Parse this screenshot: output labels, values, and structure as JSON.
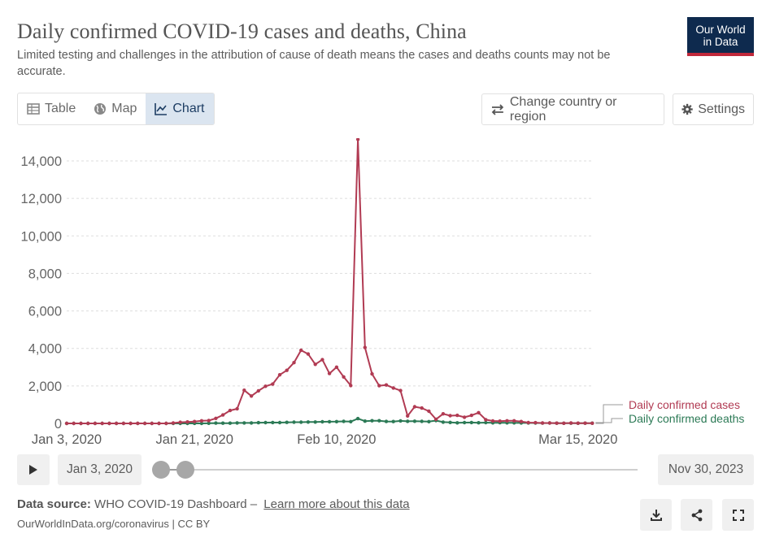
{
  "header": {
    "title": "Daily confirmed COVID-19 cases and deaths, China",
    "subtitle": "Limited testing and challenges in the attribution of cause of death means the cases and deaths counts may not be accurate.",
    "logo_line1": "Our World",
    "logo_line2": "in Data"
  },
  "tabs": [
    {
      "label": "Table",
      "icon": "table-icon"
    },
    {
      "label": "Map",
      "icon": "globe-icon"
    },
    {
      "label": "Chart",
      "icon": "line-chart-icon",
      "active": true
    }
  ],
  "controls": {
    "change_country": "Change country or region",
    "settings": "Settings"
  },
  "timeline": {
    "start_date": "Jan 3, 2020",
    "end_date": "Nov 30, 2023"
  },
  "footer": {
    "source_label": "Data source:",
    "source_text": "WHO COVID-19 Dashboard –",
    "learn_more": "Learn more about this data",
    "url": "OurWorldInData.org/coronavirus | CC BY"
  },
  "colors": {
    "cases": "#b13b53",
    "deaths": "#2c7a56",
    "grid": "#dddddd"
  },
  "chart_data": {
    "type": "line",
    "title": "Daily confirmed COVID-19 cases and deaths, China",
    "xlabel": "",
    "ylabel": "",
    "ylim": [
      0,
      15000
    ],
    "yticks": [
      0,
      2000,
      4000,
      6000,
      8000,
      10000,
      12000,
      14000
    ],
    "ytick_labels": [
      "0",
      "2,000",
      "4,000",
      "6,000",
      "8,000",
      "10,000",
      "12,000",
      "14,000"
    ],
    "xticks": [
      "2020-01-03",
      "2020-01-21",
      "2020-02-10",
      "2020-03-15"
    ],
    "xtick_labels": [
      "Jan 3, 2020",
      "Jan 21, 2020",
      "Feb 10, 2020",
      "Mar 15, 2020"
    ],
    "x_range": [
      "2020-01-03",
      "2020-03-18"
    ],
    "grid": true,
    "legend_position": "right",
    "series": [
      {
        "name": "Daily confirmed cases",
        "color": "#b13b53",
        "points": [
          [
            "2020-01-03",
            0
          ],
          [
            "2020-01-04",
            0
          ],
          [
            "2020-01-05",
            0
          ],
          [
            "2020-01-06",
            0
          ],
          [
            "2020-01-07",
            0
          ],
          [
            "2020-01-08",
            0
          ],
          [
            "2020-01-09",
            0
          ],
          [
            "2020-01-10",
            0
          ],
          [
            "2020-01-11",
            0
          ],
          [
            "2020-01-12",
            0
          ],
          [
            "2020-01-13",
            5
          ],
          [
            "2020-01-14",
            0
          ],
          [
            "2020-01-15",
            0
          ],
          [
            "2020-01-16",
            0
          ],
          [
            "2020-01-17",
            0
          ],
          [
            "2020-01-18",
            20
          ],
          [
            "2020-01-19",
            60
          ],
          [
            "2020-01-20",
            80
          ],
          [
            "2020-01-21",
            100
          ],
          [
            "2020-01-22",
            140
          ],
          [
            "2020-01-23",
            150
          ],
          [
            "2020-01-24",
            270
          ],
          [
            "2020-01-25",
            450
          ],
          [
            "2020-01-26",
            690
          ],
          [
            "2020-01-27",
            780
          ],
          [
            "2020-01-28",
            1770
          ],
          [
            "2020-01-29",
            1460
          ],
          [
            "2020-01-30",
            1740
          ],
          [
            "2020-01-31",
            1980
          ],
          [
            "2020-02-01",
            2100
          ],
          [
            "2020-02-02",
            2590
          ],
          [
            "2020-02-03",
            2830
          ],
          [
            "2020-02-04",
            3240
          ],
          [
            "2020-02-05",
            3900
          ],
          [
            "2020-02-06",
            3700
          ],
          [
            "2020-02-07",
            3150
          ],
          [
            "2020-02-08",
            3400
          ],
          [
            "2020-02-09",
            2660
          ],
          [
            "2020-02-10",
            3000
          ],
          [
            "2020-02-11",
            2480
          ],
          [
            "2020-02-12",
            2020
          ],
          [
            "2020-02-13",
            15150
          ],
          [
            "2020-02-14",
            4050
          ],
          [
            "2020-02-15",
            2640
          ],
          [
            "2020-02-16",
            2010
          ],
          [
            "2020-02-17",
            2050
          ],
          [
            "2020-02-18",
            1890
          ],
          [
            "2020-02-19",
            1750
          ],
          [
            "2020-02-20",
            400
          ],
          [
            "2020-02-21",
            890
          ],
          [
            "2020-02-22",
            820
          ],
          [
            "2020-02-23",
            650
          ],
          [
            "2020-02-24",
            220
          ],
          [
            "2020-02-25",
            510
          ],
          [
            "2020-02-26",
            410
          ],
          [
            "2020-02-27",
            430
          ],
          [
            "2020-02-28",
            330
          ],
          [
            "2020-02-29",
            430
          ],
          [
            "2020-03-01",
            570
          ],
          [
            "2020-03-02",
            200
          ],
          [
            "2020-03-03",
            130
          ],
          [
            "2020-03-04",
            120
          ],
          [
            "2020-03-05",
            140
          ],
          [
            "2020-03-06",
            140
          ],
          [
            "2020-03-07",
            100
          ],
          [
            "2020-03-08",
            45
          ],
          [
            "2020-03-09",
            40
          ],
          [
            "2020-03-10",
            20
          ],
          [
            "2020-03-11",
            20
          ],
          [
            "2020-03-12",
            15
          ],
          [
            "2020-03-13",
            10
          ],
          [
            "2020-03-14",
            20
          ],
          [
            "2020-03-15",
            15
          ],
          [
            "2020-03-16",
            15
          ],
          [
            "2020-03-17",
            10
          ]
        ]
      },
      {
        "name": "Daily confirmed deaths",
        "color": "#2c7a56",
        "points": [
          [
            "2020-01-03",
            0
          ],
          [
            "2020-01-04",
            0
          ],
          [
            "2020-01-05",
            0
          ],
          [
            "2020-01-06",
            0
          ],
          [
            "2020-01-07",
            0
          ],
          [
            "2020-01-08",
            0
          ],
          [
            "2020-01-09",
            0
          ],
          [
            "2020-01-10",
            0
          ],
          [
            "2020-01-11",
            0
          ],
          [
            "2020-01-12",
            0
          ],
          [
            "2020-01-13",
            0
          ],
          [
            "2020-01-14",
            0
          ],
          [
            "2020-01-15",
            0
          ],
          [
            "2020-01-16",
            0
          ],
          [
            "2020-01-17",
            0
          ],
          [
            "2020-01-18",
            0
          ],
          [
            "2020-01-19",
            0
          ],
          [
            "2020-01-20",
            0
          ],
          [
            "2020-01-21",
            3
          ],
          [
            "2020-01-22",
            0
          ],
          [
            "2020-01-23",
            8
          ],
          [
            "2020-01-24",
            16
          ],
          [
            "2020-01-25",
            15
          ],
          [
            "2020-01-26",
            15
          ],
          [
            "2020-01-27",
            24
          ],
          [
            "2020-01-28",
            26
          ],
          [
            "2020-01-29",
            26
          ],
          [
            "2020-01-30",
            38
          ],
          [
            "2020-01-31",
            43
          ],
          [
            "2020-02-01",
            46
          ],
          [
            "2020-02-02",
            45
          ],
          [
            "2020-02-03",
            57
          ],
          [
            "2020-02-04",
            64
          ],
          [
            "2020-02-05",
            65
          ],
          [
            "2020-02-06",
            73
          ],
          [
            "2020-02-07",
            73
          ],
          [
            "2020-02-08",
            86
          ],
          [
            "2020-02-09",
            89
          ],
          [
            "2020-02-10",
            97
          ],
          [
            "2020-02-11",
            108
          ],
          [
            "2020-02-12",
            97
          ],
          [
            "2020-02-13",
            254
          ],
          [
            "2020-02-14",
            121
          ],
          [
            "2020-02-15",
            143
          ],
          [
            "2020-02-16",
            142
          ],
          [
            "2020-02-17",
            105
          ],
          [
            "2020-02-18",
            98
          ],
          [
            "2020-02-19",
            136
          ],
          [
            "2020-02-20",
            114
          ],
          [
            "2020-02-21",
            118
          ],
          [
            "2020-02-22",
            109
          ],
          [
            "2020-02-23",
            97
          ],
          [
            "2020-02-24",
            150
          ],
          [
            "2020-02-25",
            71
          ],
          [
            "2020-02-26",
            52
          ],
          [
            "2020-02-27",
            29
          ],
          [
            "2020-02-28",
            44
          ],
          [
            "2020-02-29",
            47
          ],
          [
            "2020-03-01",
            35
          ],
          [
            "2020-03-02",
            42
          ],
          [
            "2020-03-03",
            31
          ],
          [
            "2020-03-04",
            38
          ],
          [
            "2020-03-05",
            31
          ],
          [
            "2020-03-06",
            30
          ],
          [
            "2020-03-07",
            28
          ],
          [
            "2020-03-08",
            27
          ],
          [
            "2020-03-09",
            22
          ],
          [
            "2020-03-10",
            17
          ],
          [
            "2020-03-11",
            22
          ],
          [
            "2020-03-12",
            11
          ],
          [
            "2020-03-13",
            7
          ],
          [
            "2020-03-14",
            13
          ],
          [
            "2020-03-15",
            10
          ],
          [
            "2020-03-16",
            14
          ],
          [
            "2020-03-17",
            13
          ]
        ]
      }
    ]
  }
}
